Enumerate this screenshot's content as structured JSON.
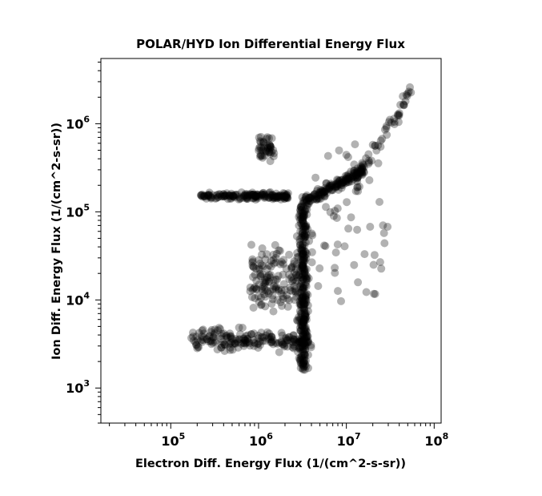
{
  "chart_data": {
    "type": "scatter",
    "title": "POLAR/HYD  Ion Differential Energy Flux",
    "xlabel": "Electron Diff. Energy Flux (1/(cm^2-s-sr))",
    "ylabel": "Ion Diff. Energy Flux (1/(cm^2-s-sr))",
    "x_scale": "log",
    "y_scale": "log",
    "xlim": [
      16000,
      120000000
    ],
    "ylim": [
      400,
      5500000
    ],
    "x_ticks": [
      {
        "value": 100000,
        "base": "10",
        "exp": "5"
      },
      {
        "value": 1000000,
        "base": "10",
        "exp": "6"
      },
      {
        "value": 10000000,
        "base": "10",
        "exp": "7"
      },
      {
        "value": 100000000,
        "base": "10",
        "exp": "8"
      }
    ],
    "y_ticks": [
      {
        "value": 1000,
        "base": "10",
        "exp": "3"
      },
      {
        "value": 10000,
        "base": "10",
        "exp": "4"
      },
      {
        "value": 100000,
        "base": "10",
        "exp": "5"
      },
      {
        "value": 1000000,
        "base": "10",
        "exp": "6"
      }
    ],
    "grid": false,
    "marker_color": "#000000",
    "marker_opacity": 0.3,
    "clusters": [
      {
        "name": "vertical band",
        "x_range": [
          2600000,
          4000000
        ],
        "y_range": [
          1600,
          150000
        ],
        "count": 320
      },
      {
        "name": "horizontal band",
        "x_range": [
          220000,
          2200000
        ],
        "y_range": [
          130000,
          175000
        ],
        "count": 170
      },
      {
        "name": "low band",
        "x_range": [
          170000,
          4000000
        ],
        "y_range": [
          2200,
          5500
        ],
        "count": 200
      },
      {
        "name": "lower-left group",
        "x_range": [
          800000,
          2800000
        ],
        "y_range": [
          5000,
          60000
        ],
        "count": 140
      },
      {
        "name": "upper branch",
        "x_range": [
          3500000,
          16000000
        ],
        "y_range": [
          100000,
          400000
        ],
        "count": 160
      },
      {
        "name": "upper-left group",
        "x_range": [
          1000000,
          1500000
        ],
        "y_range": [
          300000,
          950000
        ],
        "count": 45
      },
      {
        "name": "right diagonal",
        "x_range": [
          15000000,
          55000000
        ],
        "y_range": [
          300000,
          2400000
        ],
        "count": 45
      },
      {
        "name": "outliers",
        "x_range": [
          4000000,
          30000000
        ],
        "y_range": [
          9000,
          600000
        ],
        "count": 60
      }
    ]
  }
}
